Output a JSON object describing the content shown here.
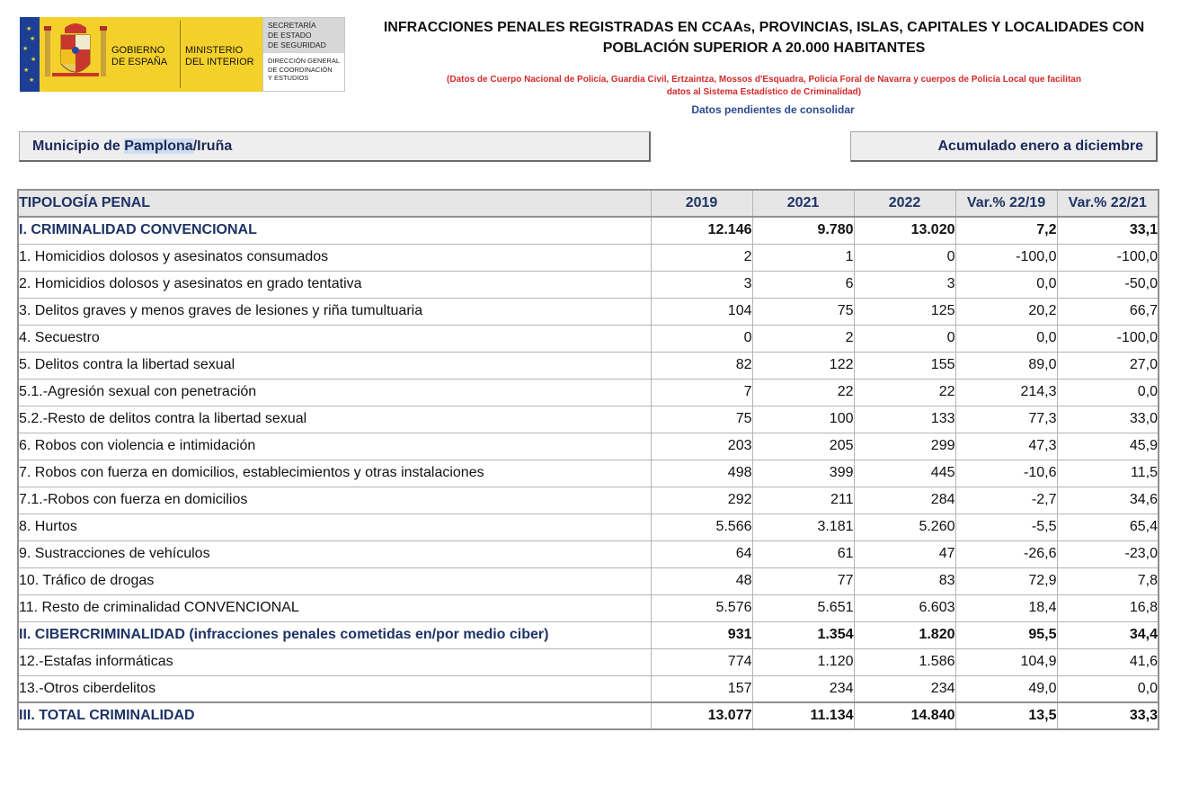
{
  "logo": {
    "gobierno": [
      "GOBIERNO",
      "DE ESPAÑA"
    ],
    "ministerio": [
      "MINISTERIO",
      "DEL INTERIOR"
    ],
    "secretaria": [
      "SECRETARÍA",
      "DE ESTADO",
      "DE SEGURIDAD"
    ],
    "direccion": [
      "DIRECCIÓN GENERAL",
      "DE COORDINACIÓN",
      "Y ESTUDIOS"
    ]
  },
  "title": [
    "INFRACCIONES PENALES REGISTRADAS EN CCAAs, PROVINCIAS, ISLAS, CAPITALES Y LOCALIDADES CON",
    "POBLACIÓN SUPERIOR A 20.000 HABITANTES"
  ],
  "subtitle": [
    "(Datos de Cuerpo Nacional de Policía, Guardia Civil, Ertzaintza, Mossos d'Esquadra, Policía Foral de Navarra y cuerpos de Policía Local que facilitan",
    "datos al Sistema Estadístico de Criminalidad)"
  ],
  "pending": "Datos pendientes de consolidar",
  "municipio": {
    "prefix": "Municipio de ",
    "highlight": "Pamplona",
    "suffix": "/Iruña"
  },
  "periodo": "Acumulado enero a diciembre",
  "table": {
    "headers": [
      "TIPOLOGÍA PENAL",
      "2019",
      "2021",
      "2022",
      "Var.% 22/19",
      "Var.% 22/21"
    ],
    "rows": [
      {
        "name": "I. CRIMINALIDAD CONVENCIONAL",
        "bold": true,
        "values": [
          "12.146",
          "9.780",
          "13.020",
          "7,2",
          "33,1"
        ]
      },
      {
        "name": "1. Homicidios dolosos y asesinatos consumados",
        "values": [
          "2",
          "1",
          "0",
          "-100,0",
          "-100,0"
        ]
      },
      {
        "name": "2. Homicidios dolosos y asesinatos en grado tentativa",
        "values": [
          "3",
          "6",
          "3",
          "0,0",
          "-50,0"
        ]
      },
      {
        "name": "3. Delitos graves y menos graves de lesiones y riña tumultuaria",
        "values": [
          "104",
          "75",
          "125",
          "20,2",
          "66,7"
        ]
      },
      {
        "name": "4. Secuestro",
        "values": [
          "0",
          "2",
          "0",
          "0,0",
          "-100,0"
        ]
      },
      {
        "name": "5. Delitos contra la libertad sexual",
        "values": [
          "82",
          "122",
          "155",
          "89,0",
          "27,0"
        ]
      },
      {
        "name": "5.1.-Agresión sexual con penetración",
        "values": [
          "7",
          "22",
          "22",
          "214,3",
          "0,0"
        ]
      },
      {
        "name": "5.2.-Resto de delitos contra la libertad sexual",
        "values": [
          "75",
          "100",
          "133",
          "77,3",
          "33,0"
        ]
      },
      {
        "name": "6. Robos con violencia e intimidación",
        "values": [
          "203",
          "205",
          "299",
          "47,3",
          "45,9"
        ]
      },
      {
        "name": "7. Robos con fuerza en domicilios, establecimientos y otras instalaciones",
        "values": [
          "498",
          "399",
          "445",
          "-10,6",
          "11,5"
        ]
      },
      {
        "name": "7.1.-Robos con fuerza en domicilios",
        "values": [
          "292",
          "211",
          "284",
          "-2,7",
          "34,6"
        ]
      },
      {
        "name": "8. Hurtos",
        "values": [
          "5.566",
          "3.181",
          "5.260",
          "-5,5",
          "65,4"
        ]
      },
      {
        "name": "9. Sustracciones de vehículos",
        "values": [
          "64",
          "61",
          "47",
          "-26,6",
          "-23,0"
        ]
      },
      {
        "name": "10. Tráfico de drogas",
        "values": [
          "48",
          "77",
          "83",
          "72,9",
          "7,8"
        ]
      },
      {
        "name": "11. Resto de criminalidad CONVENCIONAL",
        "values": [
          "5.576",
          "5.651",
          "6.603",
          "18,4",
          "16,8"
        ]
      },
      {
        "name": "II. CIBERCRIMINALIDAD (infracciones penales cometidas en/por medio ciber)",
        "bold": true,
        "values": [
          "931",
          "1.354",
          "1.820",
          "95,5",
          "34,4"
        ]
      },
      {
        "name": "12.-Estafas informáticas",
        "values": [
          "774",
          "1.120",
          "1.586",
          "104,9",
          "41,6"
        ]
      },
      {
        "name": "13.-Otros ciberdelitos",
        "values": [
          "157",
          "234",
          "234",
          "49,0",
          "0,0"
        ]
      },
      {
        "name": "III. TOTAL CRIMINALIDAD",
        "bold": true,
        "total": true,
        "values": [
          "13.077",
          "11.134",
          "14.840",
          "13,5",
          "33,3"
        ]
      }
    ]
  },
  "colors": {
    "logo_yellow": "#f4d12a",
    "flag_blue": "#1c3f95",
    "subtitle_red": "#d42a2a",
    "heading_blue": "#1e3366",
    "selection_highlight": "#cfddf0"
  }
}
